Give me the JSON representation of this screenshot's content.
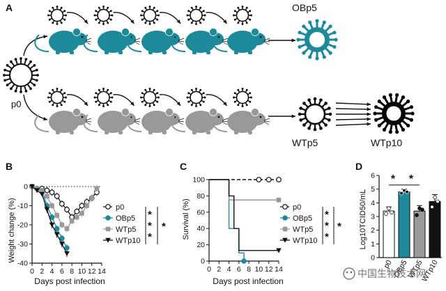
{
  "figure": {
    "panel_labels": [
      "A",
      "B",
      "C",
      "D"
    ],
    "diagram": {
      "start_label": "p0",
      "end_label_mutant": "OBp5",
      "end_label_wt_p5": "WTp5",
      "end_label_wt_p10": "WTp10",
      "colors": {
        "mutant": "#1b8a99",
        "wt": "#999999",
        "virus": "#111111"
      }
    },
    "watermark": "中国生物技术网"
  },
  "chart_data": [
    {
      "panel": "B",
      "type": "line",
      "xlabel": "Days post infection",
      "ylabel": "Weight change (%)",
      "xticks": [
        0,
        2,
        4,
        6,
        8,
        10,
        12,
        14
      ],
      "yticks": [
        0,
        -10,
        -20,
        -30,
        -40
      ],
      "xlim": [
        0,
        14
      ],
      "ylim": [
        -40,
        0
      ],
      "reference_line_y": 0,
      "significance": [
        "*",
        "*",
        "*",
        "*"
      ],
      "series": [
        {
          "name": "p0",
          "marker": "open-circle",
          "color": "#111111",
          "x": [
            0,
            1,
            2,
            3,
            4,
            5,
            6,
            7,
            8,
            9,
            10,
            11,
            12,
            13
          ],
          "y": [
            0,
            -1,
            -1,
            -2,
            -3,
            -5,
            -9,
            -12,
            -16,
            -13,
            -10,
            -8,
            -6,
            -3
          ]
        },
        {
          "name": "OBp5",
          "marker": "filled-circle",
          "color": "#1b8a99",
          "x": [
            0,
            1,
            2,
            3,
            4,
            5,
            6,
            7
          ],
          "y": [
            0,
            -1,
            -2,
            -10,
            -16,
            -22,
            -27,
            -32
          ]
        },
        {
          "name": "WTp5",
          "marker": "square",
          "color": "#999999",
          "x": [
            0,
            1,
            2,
            3,
            4,
            5,
            6,
            7,
            8,
            9,
            10,
            11,
            12,
            13
          ],
          "y": [
            0,
            -1,
            -2,
            -5,
            -10,
            -15,
            -20,
            -22,
            -18,
            -16,
            -14,
            -10,
            -6,
            -1
          ]
        },
        {
          "name": "WTp10",
          "marker": "triangle-down",
          "color": "#111111",
          "x": [
            0,
            1,
            2,
            3,
            4,
            5,
            6,
            7
          ],
          "y": [
            0,
            -2,
            -4,
            -12,
            -20,
            -25,
            -30,
            -35
          ]
        }
      ]
    },
    {
      "panel": "C",
      "type": "line",
      "xlabel": "Days post infection",
      "ylabel": "Survival (%)",
      "xticks": [
        0,
        2,
        4,
        6,
        8,
        10,
        12,
        14
      ],
      "yticks": [
        0,
        20,
        40,
        60,
        80,
        100
      ],
      "xlim": [
        0,
        14
      ],
      "ylim": [
        0,
        100
      ],
      "significance": [
        "*",
        "*",
        "*",
        "*"
      ],
      "series": [
        {
          "name": "p0",
          "marker": "open-circle",
          "color": "#111111",
          "x": [
            0,
            14
          ],
          "y": [
            100,
            100
          ]
        },
        {
          "name": "OBp5",
          "marker": "filled-circle",
          "color": "#1b8a99",
          "x": [
            0,
            3,
            4,
            5,
            6,
            7
          ],
          "y": [
            100,
            100,
            40,
            40,
            10,
            0
          ]
        },
        {
          "name": "WTp5",
          "marker": "square",
          "color": "#999999",
          "x": [
            0,
            4,
            4,
            8,
            8,
            14
          ],
          "y": [
            100,
            100,
            75,
            75,
            75,
            75
          ]
        },
        {
          "name": "WTp10",
          "marker": "triangle-down",
          "color": "#111111",
          "x": [
            0,
            3,
            4,
            5,
            6,
            7,
            14
          ],
          "y": [
            100,
            100,
            80,
            40,
            13,
            13,
            13
          ]
        }
      ]
    },
    {
      "panel": "D",
      "type": "bar",
      "ylabel": "Log10TCID50/mL",
      "categories": [
        "p0",
        "OBp5",
        "WTp5",
        "WTp10"
      ],
      "values": [
        3.4,
        4.8,
        3.4,
        4.1
      ],
      "errors": [
        0.3,
        0.2,
        0.4,
        0.5
      ],
      "points": [
        [
          3.2,
          3.6,
          3.3
        ],
        [
          4.7,
          4.9,
          4.8
        ],
        [
          3.1,
          3.6,
          3.5
        ],
        [
          3.7,
          4.4,
          4.1
        ]
      ],
      "colors": [
        "#ffffff",
        "#1b8a99",
        "#999999",
        "#111111"
      ],
      "yticks": [
        0,
        1,
        2,
        3,
        4,
        5,
        6
      ],
      "ylim": [
        0,
        6
      ],
      "significance": [
        "*",
        "*"
      ]
    }
  ]
}
